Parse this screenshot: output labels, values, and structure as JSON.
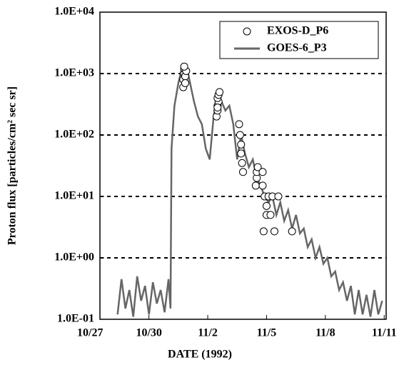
{
  "chart_data": {
    "type": "line-scatter",
    "x_label": "DATE (1992)",
    "y_label": "Proton flux [particles/cm² sec sr]",
    "log_y": true,
    "grid": true,
    "legend": "upper right",
    "xlim": [
      0.5,
      15.1
    ],
    "xticks": [
      {
        "value": 0,
        "label": "10/27"
      },
      {
        "value": 3,
        "label": "10/30"
      },
      {
        "value": 6,
        "label": "11/2"
      },
      {
        "value": 9,
        "label": "11/5"
      },
      {
        "value": 12,
        "label": "11/8"
      },
      {
        "value": 15,
        "label": "11/11"
      }
    ],
    "ylim": [
      0.1,
      10000
    ],
    "yticks": [
      {
        "value": 0.1,
        "label": "1.0E-01"
      },
      {
        "value": 1,
        "label": "1.0E+00"
      },
      {
        "value": 10,
        "label": "1.0E+01"
      },
      {
        "value": 100,
        "label": "1.0E+02"
      },
      {
        "value": 1000,
        "label": "1.0E+03"
      },
      {
        "value": 10000,
        "label": "1.0E+04"
      }
    ],
    "series": [
      {
        "name": "EXOS-D_P6",
        "kind": "scatter",
        "color": "#000000",
        "x": [
          4.75,
          4.75,
          4.8,
          4.8,
          4.85,
          4.85,
          4.9,
          4.8,
          6.45,
          6.5,
          6.5,
          6.55,
          6.5,
          6.55,
          6.6,
          6.5,
          7.6,
          7.65,
          7.7,
          7.7,
          7.75,
          7.8,
          8.45,
          8.5,
          8.5,
          8.55,
          8.8,
          8.8,
          8.9,
          9.0,
          9.0,
          9.1,
          9.2,
          9.3,
          8.85,
          9.4,
          9.6,
          10.3
        ],
        "values": [
          600,
          800,
          1000,
          1200,
          900,
          700,
          1100,
          1300,
          200,
          250,
          300,
          350,
          400,
          450,
          500,
          280,
          150,
          100,
          70,
          50,
          35,
          25,
          15,
          20,
          25,
          30,
          25,
          15,
          10,
          7,
          5,
          10,
          5,
          10,
          2.7,
          2.7,
          10,
          2.7
        ]
      },
      {
        "name": "GOES-6_P3",
        "kind": "line",
        "color": "#666666",
        "x": [
          1.4,
          1.6,
          1.8,
          2.0,
          2.2,
          2.4,
          2.6,
          2.8,
          3.0,
          3.2,
          3.4,
          3.6,
          3.8,
          4.0,
          4.1,
          4.15,
          4.3,
          4.5,
          4.7,
          4.9,
          5.1,
          5.3,
          5.5,
          5.7,
          5.9,
          6.1,
          6.3,
          6.5,
          6.7,
          6.9,
          7.1,
          7.3,
          7.5,
          7.7,
          7.9,
          8.1,
          8.3,
          8.5,
          8.7,
          8.9,
          9.1,
          9.3,
          9.5,
          9.7,
          9.9,
          10.1,
          10.3,
          10.5,
          10.7,
          10.9,
          11.1,
          11.3,
          11.5,
          11.7,
          11.9,
          12.1,
          12.3,
          12.5,
          12.7,
          12.9,
          13.1,
          13.3,
          13.5,
          13.7,
          13.9,
          14.1,
          14.3,
          14.5,
          14.7,
          14.9
        ],
        "values": [
          0.12,
          0.45,
          0.15,
          0.3,
          0.11,
          0.5,
          0.2,
          0.35,
          0.12,
          0.4,
          0.18,
          0.3,
          0.13,
          0.45,
          0.15,
          60,
          300,
          700,
          1300,
          1400,
          700,
          350,
          200,
          150,
          60,
          40,
          200,
          500,
          350,
          250,
          300,
          150,
          40,
          100,
          50,
          30,
          40,
          20,
          15,
          10,
          8,
          10,
          5,
          8,
          4,
          6,
          3,
          5,
          2.5,
          3,
          1.5,
          2,
          1,
          1.5,
          0.8,
          1,
          0.5,
          0.6,
          0.3,
          0.4,
          0.2,
          0.35,
          0.12,
          0.3,
          0.12,
          0.25,
          0.11,
          0.3,
          0.12,
          0.2
        ]
      }
    ]
  }
}
